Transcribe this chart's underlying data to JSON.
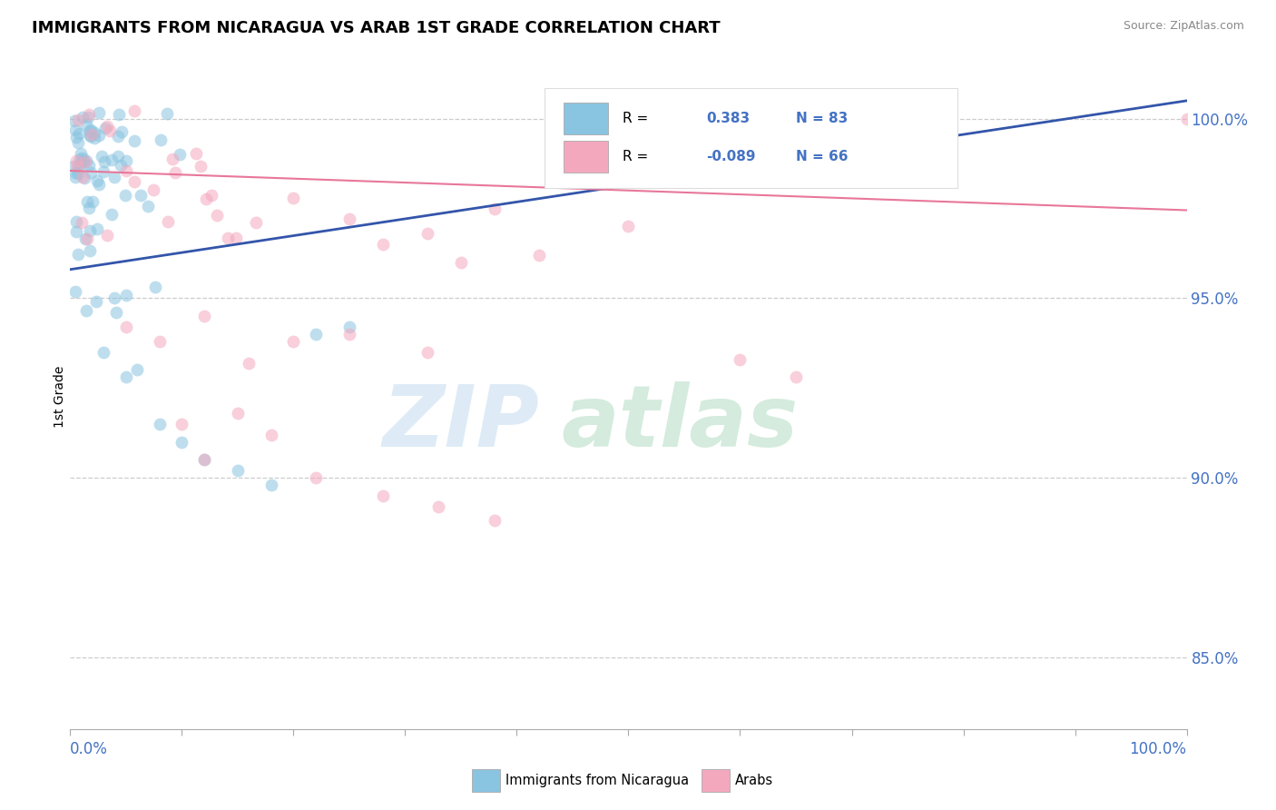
{
  "title": "IMMIGRANTS FROM NICARAGUA VS ARAB 1ST GRADE CORRELATION CHART",
  "source": "Source: ZipAtlas.com",
  "ylabel": "1st Grade",
  "blue_R": 0.383,
  "blue_N": 83,
  "pink_R": -0.089,
  "pink_N": 66,
  "blue_color": "#89c4e1",
  "pink_color": "#f4a8be",
  "blue_line_color": "#3355aa",
  "pink_line_color": "#e8779a",
  "legend_label_blue": "Immigrants from Nicaragua",
  "legend_label_pink": "Arabs",
  "background_color": "#ffffff",
  "xlim": [
    0,
    100
  ],
  "ylim": [
    83,
    101.5
  ],
  "yticks": [
    85,
    90,
    95,
    100
  ],
  "ytick_labels": [
    "85.0%",
    "90.0%",
    "95.0%",
    "100.0%"
  ],
  "blue_line_x0": 0,
  "blue_line_y0": 95.8,
  "blue_line_x1": 100,
  "blue_line_y1": 100.5,
  "pink_line_x0": 0,
  "pink_line_y0": 98.55,
  "pink_line_x1": 100,
  "pink_line_y1": 97.45
}
